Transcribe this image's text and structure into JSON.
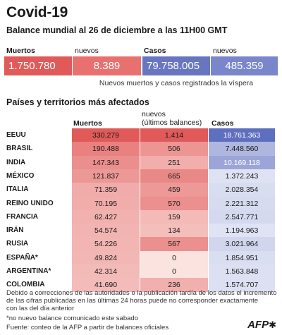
{
  "title": "Covid-19",
  "subtitle": "Balance mundial al 26 de diciembre a las 11H00 GMT",
  "summary": {
    "deaths_label": "Muertos",
    "deaths_value": "1.750.780",
    "deaths_new_label": "nuevos",
    "deaths_new_value": "8.389",
    "cases_label": "Casos",
    "cases_value": "79.758.005",
    "cases_new_label": "nuevos",
    "cases_new_value": "485.359",
    "note": "Nuevos muertos y casos registrados la víspera"
  },
  "table_title": "Países y territorios más afectados",
  "chart_data": {
    "type": "table",
    "columns": [
      "Muertos",
      "nuevos (últimos balances)",
      "Casos"
    ],
    "col_new_line1": "nuevos",
    "col_new_line2": "(últimos balances)",
    "rows": [
      {
        "country": "EEUU",
        "deaths": "330.279",
        "new": "1.414",
        "cases": "18.761.363",
        "deaths_n": 330279,
        "new_n": 1414,
        "cases_n": 18761363
      },
      {
        "country": "BRASIL",
        "deaths": "190.488",
        "new": "506",
        "cases": "7.448.560",
        "deaths_n": 190488,
        "new_n": 506,
        "cases_n": 7448560
      },
      {
        "country": "INDIA",
        "deaths": "147.343",
        "new": "251",
        "cases": "10.169.118",
        "deaths_n": 147343,
        "new_n": 251,
        "cases_n": 10169118
      },
      {
        "country": "MÉXICO",
        "deaths": "121.837",
        "new": "665",
        "cases": "1.372.243",
        "deaths_n": 121837,
        "new_n": 665,
        "cases_n": 1372243
      },
      {
        "country": "ITALIA",
        "deaths": "71.359",
        "new": "459",
        "cases": "2.028.354",
        "deaths_n": 71359,
        "new_n": 459,
        "cases_n": 2028354
      },
      {
        "country": "REINO UNIDO",
        "deaths": "70.195",
        "new": "570",
        "cases": "2.221.312",
        "deaths_n": 70195,
        "new_n": 570,
        "cases_n": 2221312
      },
      {
        "country": "FRANCIA",
        "deaths": "62.427",
        "new": "159",
        "cases": "2.547.771",
        "deaths_n": 62427,
        "new_n": 159,
        "cases_n": 2547771
      },
      {
        "country": "IRÁN",
        "deaths": "54.574",
        "new": "134",
        "cases": "1.194.963",
        "deaths_n": 54574,
        "new_n": 134,
        "cases_n": 1194963
      },
      {
        "country": "RUSIA",
        "deaths": "54.226",
        "new": "567",
        "cases": "3.021.964",
        "deaths_n": 54226,
        "new_n": 567,
        "cases_n": 3021964
      },
      {
        "country": "ESPAÑA*",
        "deaths": "49.824",
        "new": "0",
        "cases": "1.854.951",
        "deaths_n": 49824,
        "new_n": 0,
        "cases_n": 1854951
      },
      {
        "country": "ARGENTINA*",
        "deaths": "42.314",
        "new": "0",
        "cases": "1.563.848",
        "deaths_n": 42314,
        "new_n": 0,
        "cases_n": 1563848
      },
      {
        "country": "COLOMBIA",
        "deaths": "41.690",
        "new": "236",
        "cases": "1.574.707",
        "deaths_n": 41690,
        "new_n": 236,
        "cases_n": 1574707
      }
    ]
  },
  "footnotes": {
    "line1": "Debido a correcciones de las autoridades o la publicación tardía de los datos  el incremento",
    "line2": "de las cifras publicadas en las últimas 24 horas puede no corresponder exactamente",
    "line3": "con las del día anterior",
    "line4": "*no nuevo balance comunicado este sabado",
    "source": "Fuente: conteo de la AFP a partir de balances oficiales"
  },
  "logo": "AFP",
  "colors": {
    "red_strong": "#e05a5a",
    "red_light": "#fbe3df",
    "blue_strong": "#5f6fbf",
    "blue_light": "#eceef8"
  }
}
